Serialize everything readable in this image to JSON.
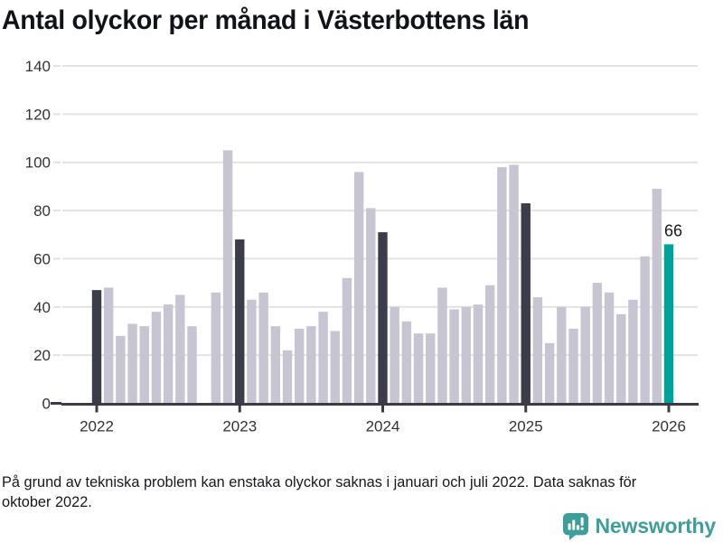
{
  "title": "Antal olyckor per månad i Västerbottens län",
  "caption": {
    "lines": [
      "På grund av tekniska problem kan enstaka olyckor saknas i januari och juli 2022. Data saknas för",
      "oktober 2022."
    ]
  },
  "branding": {
    "logo_text": "Newsworthy",
    "logo_icon": "bar-chart-speech-bubble"
  },
  "colors": {
    "bar_default": "#c7c5d1",
    "bar_january": "#3d3c4b",
    "bar_highlight": "#00a29b",
    "gridline": "#e2e2e2",
    "axis": "#3c3b45",
    "tick_label": "#333333",
    "annotation_text": "#1a1a1a",
    "brand_teal": "#3f9d9b"
  },
  "chart_data": {
    "type": "bar",
    "title": "Antal olyckor per månad i Västerbottens län",
    "xlabel": "",
    "ylabel": "",
    "ylim": [
      0,
      140
    ],
    "y_ticks": [
      0,
      20,
      40,
      60,
      80,
      100,
      120,
      140
    ],
    "x_tick_labels": [
      "2022",
      "2023",
      "2024",
      "2025",
      "2026"
    ],
    "grid": true,
    "legend": false,
    "missing_months": [
      "2022-10"
    ],
    "annotation": {
      "month": "2026-01",
      "label": "66"
    },
    "series_name": "Antal olyckor",
    "points": [
      {
        "m": "2022-01",
        "v": 47,
        "c": "january"
      },
      {
        "m": "2022-02",
        "v": 48,
        "c": "default"
      },
      {
        "m": "2022-03",
        "v": 28,
        "c": "default"
      },
      {
        "m": "2022-04",
        "v": 33,
        "c": "default"
      },
      {
        "m": "2022-05",
        "v": 32,
        "c": "default"
      },
      {
        "m": "2022-06",
        "v": 38,
        "c": "default"
      },
      {
        "m": "2022-07",
        "v": 41,
        "c": "default"
      },
      {
        "m": "2022-08",
        "v": 45,
        "c": "default"
      },
      {
        "m": "2022-09",
        "v": 32,
        "c": "default"
      },
      {
        "m": "2022-10",
        "v": null,
        "c": "default"
      },
      {
        "m": "2022-11",
        "v": 46,
        "c": "default"
      },
      {
        "m": "2022-12",
        "v": 105,
        "c": "default"
      },
      {
        "m": "2023-01",
        "v": 68,
        "c": "january"
      },
      {
        "m": "2023-02",
        "v": 43,
        "c": "default"
      },
      {
        "m": "2023-03",
        "v": 46,
        "c": "default"
      },
      {
        "m": "2023-04",
        "v": 32,
        "c": "default"
      },
      {
        "m": "2023-05",
        "v": 22,
        "c": "default"
      },
      {
        "m": "2023-06",
        "v": 31,
        "c": "default"
      },
      {
        "m": "2023-07",
        "v": 32,
        "c": "default"
      },
      {
        "m": "2023-08",
        "v": 38,
        "c": "default"
      },
      {
        "m": "2023-09",
        "v": 30,
        "c": "default"
      },
      {
        "m": "2023-10",
        "v": 52,
        "c": "default"
      },
      {
        "m": "2023-11",
        "v": 96,
        "c": "default"
      },
      {
        "m": "2023-12",
        "v": 81,
        "c": "default"
      },
      {
        "m": "2024-01",
        "v": 71,
        "c": "january"
      },
      {
        "m": "2024-02",
        "v": 40,
        "c": "default"
      },
      {
        "m": "2024-03",
        "v": 34,
        "c": "default"
      },
      {
        "m": "2024-04",
        "v": 29,
        "c": "default"
      },
      {
        "m": "2024-05",
        "v": 29,
        "c": "default"
      },
      {
        "m": "2024-06",
        "v": 48,
        "c": "default"
      },
      {
        "m": "2024-07",
        "v": 39,
        "c": "default"
      },
      {
        "m": "2024-08",
        "v": 40,
        "c": "default"
      },
      {
        "m": "2024-09",
        "v": 41,
        "c": "default"
      },
      {
        "m": "2024-10",
        "v": 49,
        "c": "default"
      },
      {
        "m": "2024-11",
        "v": 98,
        "c": "default"
      },
      {
        "m": "2024-12",
        "v": 99,
        "c": "default"
      },
      {
        "m": "2025-01",
        "v": 83,
        "c": "january"
      },
      {
        "m": "2025-02",
        "v": 44,
        "c": "default"
      },
      {
        "m": "2025-03",
        "v": 25,
        "c": "default"
      },
      {
        "m": "2025-04",
        "v": 40,
        "c": "default"
      },
      {
        "m": "2025-05",
        "v": 31,
        "c": "default"
      },
      {
        "m": "2025-06",
        "v": 40,
        "c": "default"
      },
      {
        "m": "2025-07",
        "v": 50,
        "c": "default"
      },
      {
        "m": "2025-08",
        "v": 46,
        "c": "default"
      },
      {
        "m": "2025-09",
        "v": 37,
        "c": "default"
      },
      {
        "m": "2025-10",
        "v": 43,
        "c": "default"
      },
      {
        "m": "2025-11",
        "v": 61,
        "c": "default"
      },
      {
        "m": "2025-12",
        "v": 89,
        "c": "default"
      },
      {
        "m": "2026-01",
        "v": 66,
        "c": "latest"
      }
    ]
  }
}
